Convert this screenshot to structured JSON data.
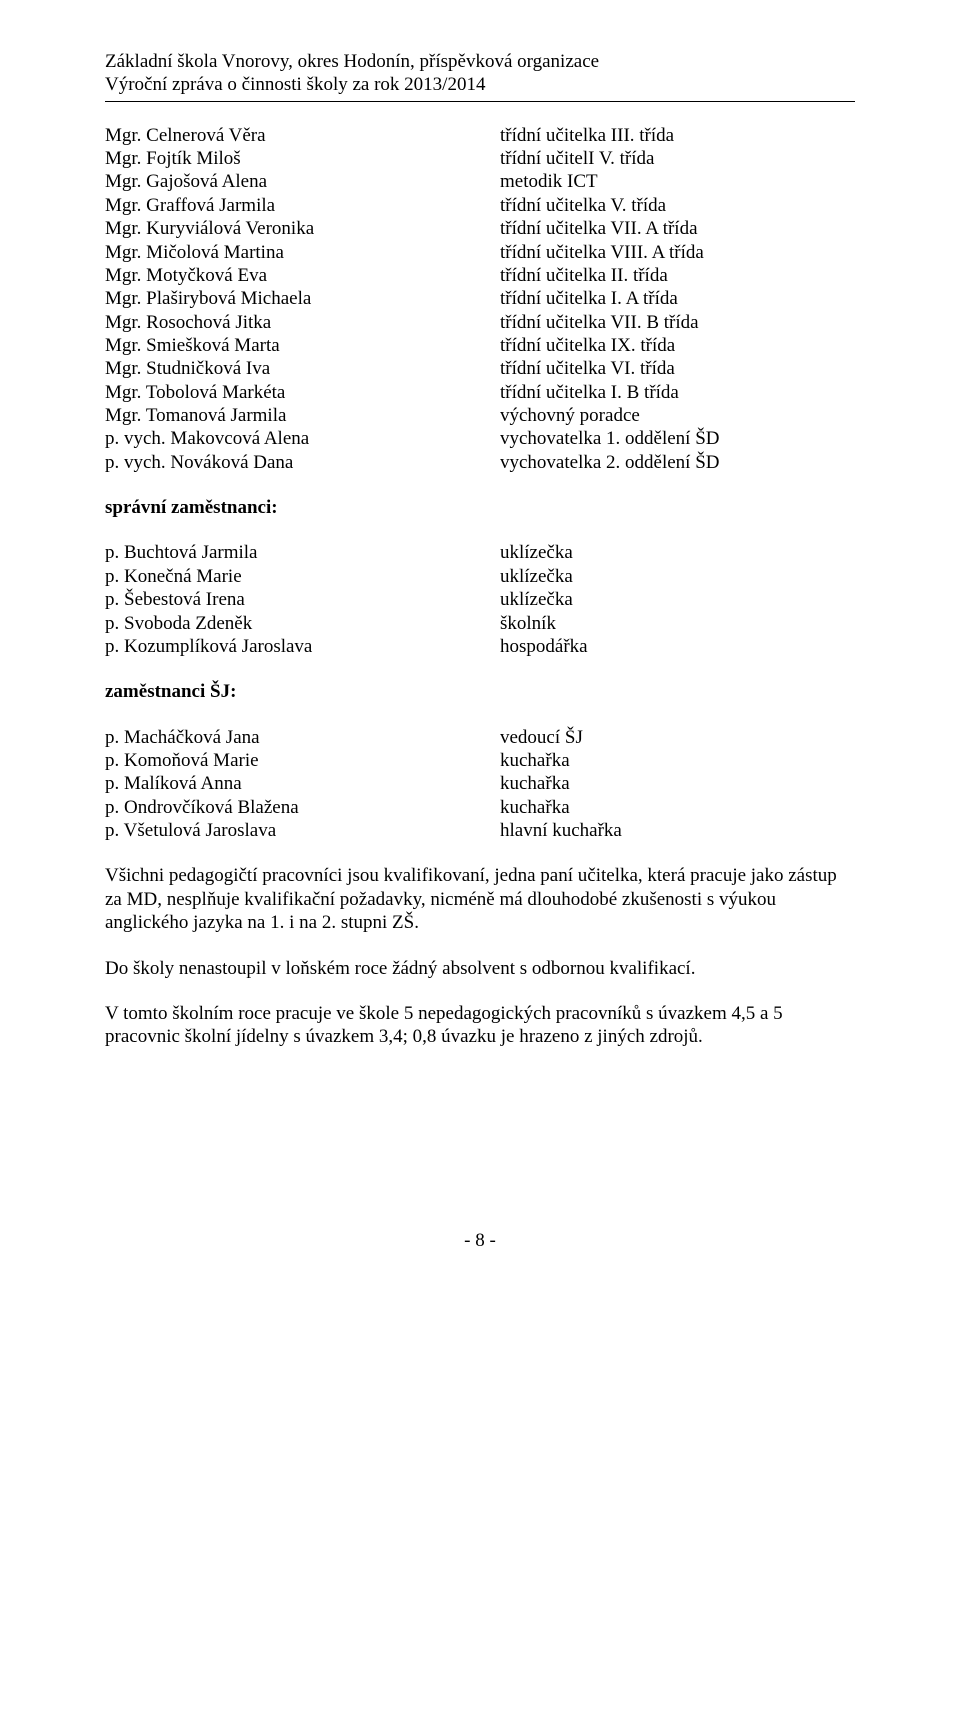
{
  "header": {
    "line1": "Základní škola Vnorovy, okres Hodonín, příspěvková organizace",
    "line2": "Výroční zpráva o činnosti školy za rok 2013/2014"
  },
  "teachers": [
    {
      "name": "Mgr. Celnerová Věra",
      "role": "třídní učitelka III. třída"
    },
    {
      "name": "Mgr. Fojtík Miloš",
      "role": "třídní učitelI V. třída"
    },
    {
      "name": "Mgr. Gajošová Alena",
      "role": "metodik ICT"
    },
    {
      "name": "Mgr. Graffová Jarmila",
      "role": "třídní učitelka V. třída"
    },
    {
      "name": "Mgr. Kuryviálová Veronika",
      "role": "třídní učitelka VII. A třída"
    },
    {
      "name": "Mgr. Mičolová Martina",
      "role": "třídní učitelka VIII. A třída"
    },
    {
      "name": "Mgr. Motyčková Eva",
      "role": "třídní učitelka II. třída"
    },
    {
      "name": "Mgr. Plaširybová Michaela",
      "role": "třídní učitelka I. A třída"
    },
    {
      "name": "Mgr. Rosochová Jitka",
      "role": "třídní učitelka VII. B třída"
    },
    {
      "name": "Mgr. Smiešková Marta",
      "role": "třídní učitelka IX. třída"
    },
    {
      "name": "Mgr. Studničková Iva",
      "role": "třídní učitelka VI. třída"
    },
    {
      "name": "Mgr. Tobolová Markéta",
      "role": "třídní učitelka I. B třída"
    },
    {
      "name": "Mgr. Tomanová Jarmila",
      "role": "výchovný poradce"
    },
    {
      "name": "p. vych. Makovcová Alena",
      "role": "vychovatelka 1. oddělení ŠD"
    },
    {
      "name": "p. vych. Nováková Dana",
      "role": "vychovatelka 2. oddělení ŠD"
    }
  ],
  "sections": {
    "admin_title": "správní zaměstnanci:",
    "sj_title": "zaměstnanci ŠJ:"
  },
  "admin_staff": [
    {
      "name": "p. Buchtová Jarmila",
      "role": "uklízečka"
    },
    {
      "name": "p. Konečná Marie",
      "role": "uklízečka"
    },
    {
      "name": "p. Šebestová Irena",
      "role": "uklízečka"
    },
    {
      "name": "p. Svoboda Zdeněk",
      "role": "školník"
    },
    {
      "name": "p. Kozumplíková Jaroslava",
      "role": "hospodářka"
    }
  ],
  "sj_staff": [
    {
      "name": "p. Macháčková Jana",
      "role": "vedoucí ŠJ"
    },
    {
      "name": "p. Komoňová Marie",
      "role": "kuchařka"
    },
    {
      "name": "p. Malíková Anna",
      "role": "kuchařka"
    },
    {
      "name": "p. Ondrovčíková Blažena",
      "role": "kuchařka"
    },
    {
      "name": "p. Všetulová Jaroslava",
      "role": "hlavní kuchařka"
    }
  ],
  "paragraphs": {
    "p1": "Všichni pedagogičtí pracovníci jsou kvalifikovaní, jedna paní učitelka, která pracuje jako zástup za MD, nesplňuje kvalifikační požadavky, nicméně má dlouhodobé zkušenosti s výukou anglického jazyka na 1. i na 2. stupni ZŠ.",
    "p2": "Do školy nenastoupil v loňském roce žádný absolvent s odbornou kvalifikací.",
    "p3": "V tomto školním roce pracuje ve škole 5 nepedagogických pracovníků s úvazkem 4,5 a 5 pracovnic školní jídelny s úvazkem 3,4; 0,8 úvazku je hrazeno z jiných zdrojů."
  },
  "page_number": "- 8 -"
}
